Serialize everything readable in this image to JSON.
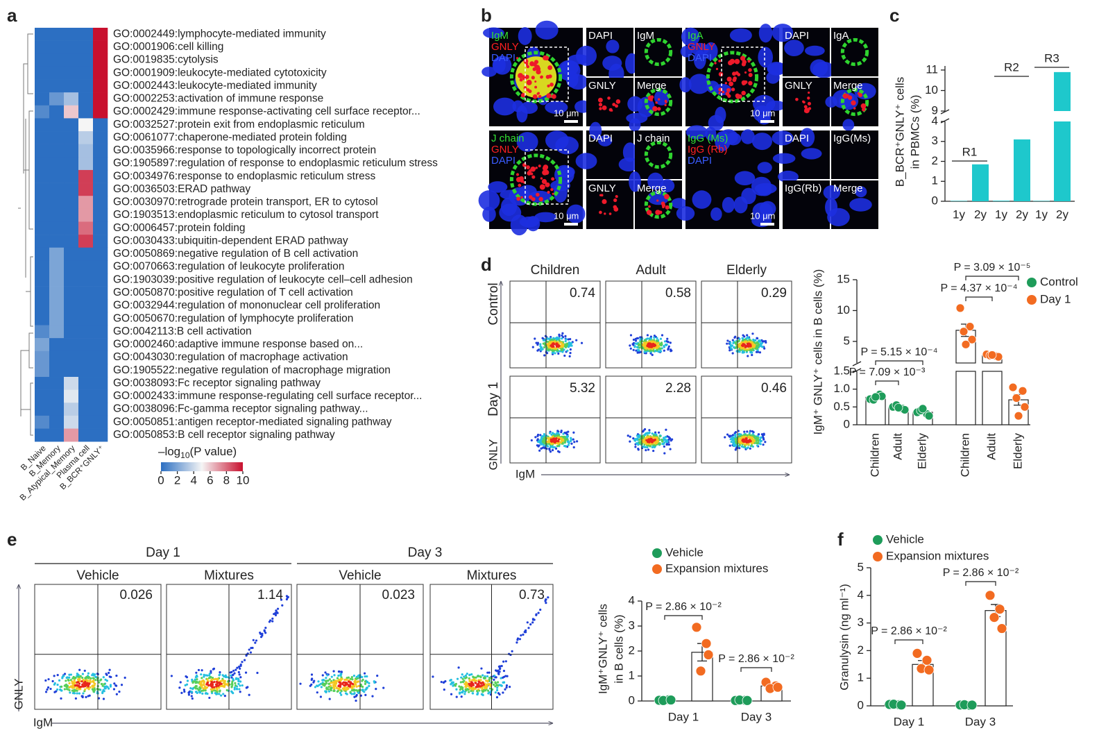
{
  "panels": {
    "a": {
      "label": "a",
      "terms": [
        "GO:0002449:lymphocyte-mediated immunity",
        "GO:0001906:cell killing",
        "GO:0019835:cytolysis",
        "GO:0001909:leukocyte-mediated cytotoxicity",
        "GO:0002443:leukocyte-mediated immunity",
        "GO:0002253:activation of immune response",
        "GO:0002429:immune response-activating cell surface receptor...",
        "GO:0032527:protein exit from endoplasmic reticulum",
        "GO:0061077:chaperone-mediated protein folding",
        "GO:0035966:response to topologically incorrect protein",
        "GO:1905897:regulation of response to endoplasmic reticulum stress",
        "GO:0034976:response to endoplasmic reticulum stress",
        "GO:0036503:ERAD pathway",
        "GO:0030970:retrograde protein transport, ER to cytosol",
        "GO:1903513:endoplasmic reticulum to cytosol transport",
        "GO:0006457:protein folding",
        "GO:0030433:ubiquitin-dependent ERAD pathway",
        "GO:0050869:negative regulation of B cell activation",
        "GO:0070663:regulation of leukocyte proliferation",
        "GO:1903039:positive regulation of leukocyte cell–cell adhesion",
        "GO:0050870:positive regulation of T cell activation",
        "GO:0032944:regulation of mononuclear cell proliferation",
        "GO:0050670:regulation of lymphocyte proliferation",
        "GO:0042113:B cell activation",
        "GO:0002460:adaptive immune response based on...",
        "GO:0043030:regulation of macrophage activation",
        "GO:1905522:negative regulation of macrophage migration",
        "GO:0038093:Fc receptor signaling pathway",
        "GO:0002433:immune response-regulating cell surface receptor...",
        "GO:0038096:Fc-gamma receptor signaling pathway...",
        "GO:0050851:antigen receptor-mediated signaling pathway",
        "GO:0050853:B cell receptor signaling pathway"
      ],
      "columns": [
        "B_Naive",
        "B_Memory",
        "B_Atypical_Memory",
        "Plasma cell",
        "B_BCR⁺GNLY⁺"
      ],
      "matrix": [
        [
          0,
          0,
          0,
          0,
          10
        ],
        [
          0,
          0,
          0,
          0,
          10
        ],
        [
          0,
          0,
          0,
          0,
          10
        ],
        [
          0,
          0,
          0,
          0,
          10
        ],
        [
          0,
          0,
          0,
          0,
          10
        ],
        [
          0,
          1.5,
          3,
          0,
          10
        ],
        [
          1,
          0,
          6,
          0,
          10
        ],
        [
          0,
          0,
          0,
          5,
          0
        ],
        [
          0,
          0,
          0,
          3.5,
          0
        ],
        [
          0,
          0,
          0,
          3,
          0
        ],
        [
          0,
          0,
          0,
          3,
          0
        ],
        [
          0,
          0,
          0,
          9,
          0
        ],
        [
          0,
          0,
          0,
          9,
          0
        ],
        [
          0,
          0,
          0,
          7,
          0
        ],
        [
          0,
          0,
          0,
          7,
          0
        ],
        [
          0,
          0,
          0,
          8,
          0
        ],
        [
          0,
          0,
          0,
          9,
          0
        ],
        [
          0,
          2,
          0,
          0,
          0
        ],
        [
          0,
          2,
          0,
          0,
          0
        ],
        [
          0,
          2,
          0,
          0,
          0
        ],
        [
          0,
          2,
          0,
          0,
          0
        ],
        [
          0,
          2,
          0,
          0,
          0
        ],
        [
          0,
          2,
          0,
          0,
          0
        ],
        [
          1,
          2,
          0,
          0,
          0
        ],
        [
          2,
          0,
          0,
          0,
          0
        ],
        [
          1.5,
          0,
          0,
          0,
          0
        ],
        [
          1.5,
          0,
          0,
          0,
          0
        ],
        [
          0,
          0,
          4,
          0,
          0
        ],
        [
          0,
          0,
          4.5,
          0,
          0
        ],
        [
          0,
          0,
          3.5,
          0,
          0
        ],
        [
          1,
          0,
          4,
          0,
          0
        ],
        [
          0,
          0,
          7,
          0,
          0
        ]
      ],
      "colors": [
        "#2c6fc2",
        "#f5f5f5",
        "#c8102e"
      ],
      "colorbar": {
        "title": "–log",
        "title_sub": "10",
        "title_rest": "(P value)",
        "lim": [
          0,
          10
        ],
        "ticks": [
          0,
          2,
          4,
          6,
          8,
          10
        ]
      }
    },
    "b": {
      "label": "b",
      "images": [
        {
          "overlay": [
            "IgM",
            "GNLY",
            "DAPI"
          ],
          "tiles": [
            "DAPI",
            "IgM",
            "GNLY",
            "Merge"
          ],
          "scale_bar": "10 μm"
        },
        {
          "overlay": [
            "IgA",
            "GNLY",
            "DAPI"
          ],
          "tiles": [
            "DAPI",
            "IgA",
            "GNLY",
            "Merge"
          ],
          "scale_bar": "10 μm"
        },
        {
          "overlay": [
            "J chain",
            "GNLY",
            "DAPI"
          ],
          "tiles": [
            "DAPI",
            "J chain",
            "GNLY",
            "Merge"
          ],
          "scale_bar": "10 μm"
        },
        {
          "overlay": [
            "IgG (Ms)",
            "IgG (Rb)",
            "DAPI"
          ],
          "tiles": [
            "DAPI",
            "IgG(Ms)",
            "IgG(Rb)",
            "Merge"
          ],
          "scale_bar": "10 μm"
        }
      ]
    },
    "c": {
      "label": "c",
      "chart": {
        "type": "bar",
        "ylabel": [
          "B_BCR⁺GNLY⁺ cells",
          "in PBMCs (%)"
        ],
        "categories": [
          "1y",
          "2y",
          "1y",
          "2y",
          "1y",
          "2y"
        ],
        "groups": [
          "R1",
          "R2",
          "R3"
        ],
        "values": [
          0.02,
          1.85,
          0.03,
          3.1,
          0.02,
          10.9
        ],
        "color": "#1ec8cc",
        "segments": [
          {
            "ylim": [
              0,
              4
            ],
            "yticks": [
              0,
              1,
              2,
              3,
              4
            ]
          },
          {
            "ylim": [
              9,
              11.2
            ],
            "yticks": [
              9,
              10,
              11
            ]
          }
        ]
      }
    },
    "d": {
      "label": "d",
      "flow": {
        "columns": [
          "Children",
          "Adult",
          "Elderly"
        ],
        "rows": [
          "Control",
          "Day 1"
        ],
        "values": [
          [
            0.74,
            0.58,
            0.29
          ],
          [
            5.32,
            2.28,
            0.46
          ]
        ],
        "ylabel": "GNLY",
        "xlabel": "IgM"
      },
      "chart": {
        "type": "bar_dot",
        "ylabel": "IgM⁺ GNLY⁺ cells in B cells (%)",
        "categories": [
          "Children",
          "Adult",
          "Elderly"
        ],
        "segments": [
          {
            "ylim": [
              0,
              1.5
            ],
            "yticks": [
              0,
              0.5,
              {
                "value": 1,
                "label": "1.0"
              },
              1.5
            ]
          },
          {
            "ylim": [
              1.5,
              15
            ],
            "yticks": [
              5,
              10,
              15
            ]
          }
        ],
        "series": [
          {
            "name": "Control",
            "color": "#1e9c5a",
            "values": [
              0.77,
              0.48,
              0.35
            ],
            "errors": [
              0.03,
              0.02,
              0.04
            ],
            "points": [
              [
                0.72,
                0.85,
                0.7,
                0.8,
                0.78
              ],
              [
                0.5,
                0.45,
                0.55,
                0.42,
                0.48
              ],
              [
                0.35,
                0.3,
                0.4,
                0.25,
                0.45
              ]
            ]
          },
          {
            "name": "Day 1",
            "color": "#f26b21",
            "values": [
              6.8,
              2.7,
              0.7
            ],
            "errors": [
              1.0,
              0.08,
              0.15
            ],
            "points": [
              [
                10.4,
                7.4,
                6.6,
                5.3,
                4.5
              ],
              [
                2.9,
                2.6,
                2.7,
                2.5,
                2.8
              ],
              [
                1.05,
                0.95,
                0.75,
                0.5,
                0.25
              ]
            ]
          }
        ],
        "annotations": [
          "P = 5.15 × 10⁻⁴",
          "P = 7.09 × 10⁻³",
          "P = 3.09 × 10⁻⁵",
          "P = 4.37 × 10⁻⁴"
        ]
      }
    },
    "e": {
      "label": "e",
      "flow": {
        "days": [
          "Day 1",
          "Day 3"
        ],
        "conditions": [
          "Vehicle",
          "Mixtures"
        ],
        "values": [
          [
            0.026,
            1.14
          ],
          [
            0.023,
            0.73
          ]
        ],
        "ylabel": "GNLY",
        "xlabel": "IgM"
      },
      "chart": {
        "type": "bar_dot",
        "ylabel": [
          "IgM⁺GNLY⁺ cells",
          "in B cells (%)"
        ],
        "categories": [
          "Day 1",
          "Day 3"
        ],
        "ylim": [
          0,
          4
        ],
        "yticks": [
          0,
          1,
          2,
          3,
          4
        ],
        "series": [
          {
            "name": "Vehicle",
            "color": "#1e9c5a",
            "values": [
              0.03,
              0.03
            ],
            "errors": [
              0.01,
              0.01
            ],
            "points": [
              [
                0.03,
                0.05,
                0.02,
                0.04
              ],
              [
                0.02,
                0.03,
                0.04,
                0.02
              ]
            ]
          },
          {
            "name": "Expansion mixtures",
            "color": "#f26b21",
            "values": [
              1.95,
              0.6
            ],
            "errors": [
              0.35,
              0.05
            ],
            "points": [
              [
                2.95,
                2.3,
                1.2,
                1.85
              ],
              [
                0.75,
                0.6,
                0.5,
                0.55
              ]
            ]
          }
        ],
        "annotations": [
          "P = 2.86 × 10⁻²",
          "P = 2.86 × 10⁻²"
        ]
      }
    },
    "f": {
      "label": "f",
      "chart": {
        "type": "bar_dot",
        "ylabel": "Granulysin (ng ml⁻¹)",
        "categories": [
          "Day 1",
          "Day 3"
        ],
        "ylim": [
          0,
          5
        ],
        "yticks": [
          0,
          1,
          2,
          3,
          4,
          5
        ],
        "series": [
          {
            "name": "Vehicle",
            "color": "#1e9c5a",
            "values": [
              0.05,
              0.03
            ],
            "errors": [
              0.01,
              0.01
            ],
            "points": [
              [
                0.05,
                0.04,
                0.06,
                0.03
              ],
              [
                0.03,
                0.02,
                0.04,
                0.03
              ]
            ]
          },
          {
            "name": "Expansion mixtures",
            "color": "#f26b21",
            "values": [
              1.5,
              3.45
            ],
            "errors": [
              0.14,
              0.22
            ],
            "points": [
              [
                1.9,
                1.65,
                1.35,
                1.3
              ],
              [
                4.0,
                3.5,
                3.2,
                2.8
              ]
            ]
          }
        ],
        "annotations": [
          "P = 2.86 × 10⁻²",
          "P = 2.86 × 10⁻²"
        ]
      }
    }
  }
}
